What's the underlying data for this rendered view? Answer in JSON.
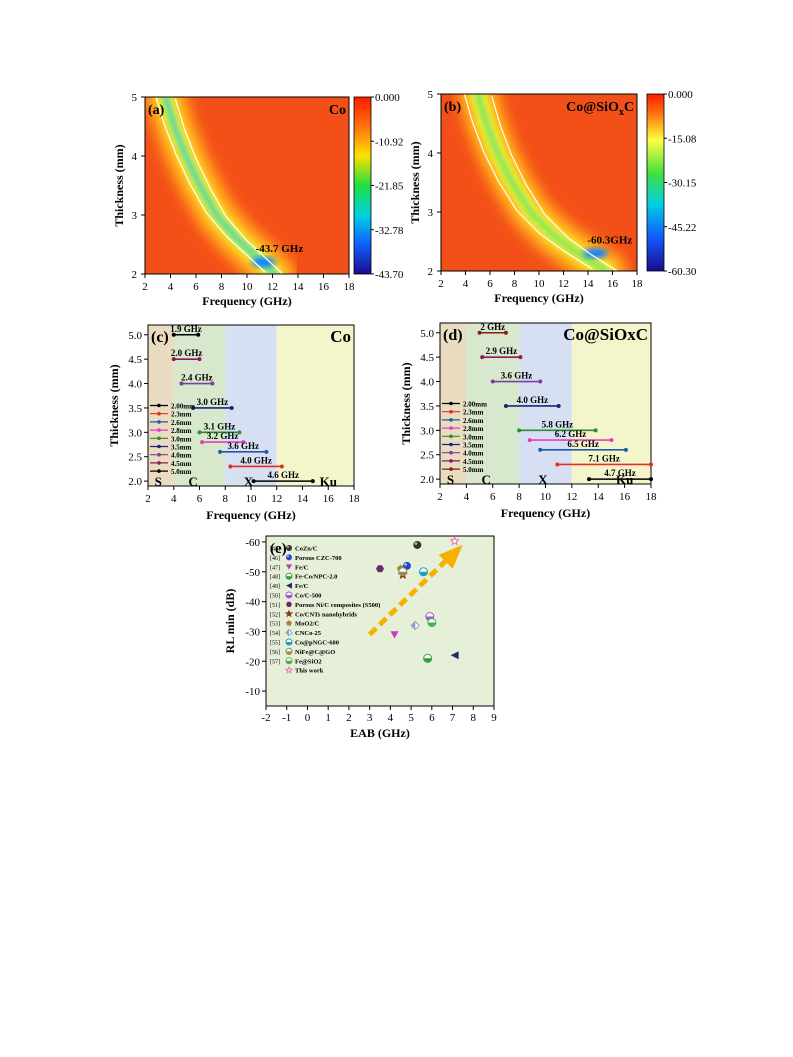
{
  "chart_data": [
    {
      "panel": "(a)",
      "type": "heatmap",
      "material": "Co",
      "xlabel": "Frequency (GHz)",
      "ylabel": "Thickness (mm)",
      "xlim": [
        2,
        18
      ],
      "ylim": [
        2,
        5
      ],
      "xticks": [
        "2",
        "4",
        "6",
        "8",
        "10",
        "12",
        "14",
        "16",
        "18"
      ],
      "yticks": [
        "2",
        "3",
        "4",
        "5"
      ],
      "colorbar_ticks": [
        "0.000",
        "-10.92",
        "-21.85",
        "-32.78",
        "-43.70"
      ],
      "colorbar_range": [
        -43.7,
        0
      ],
      "annotation": "-43.7 GHz",
      "min_point": {
        "x": 11.3,
        "y": 2.2
      },
      "ridge": [
        [
          3.6,
          5.0
        ],
        [
          4.3,
          4.5
        ],
        [
          5.2,
          4.0
        ],
        [
          6.3,
          3.5
        ],
        [
          7.6,
          3.0
        ],
        [
          9.2,
          2.6
        ],
        [
          10.7,
          2.3
        ],
        [
          12.2,
          2.0
        ]
      ]
    },
    {
      "panel": "(b)",
      "type": "heatmap",
      "material": "Co@SiO",
      "material_sub": "x",
      "material_end": "C",
      "xlabel": "Frequency (GHz)",
      "ylabel": "Thickness (mm)",
      "xlim": [
        2,
        18
      ],
      "ylim": [
        2,
        5
      ],
      "xticks": [
        "2",
        "4",
        "6",
        "8",
        "10",
        "12",
        "14",
        "16",
        "18"
      ],
      "yticks": [
        "2",
        "3",
        "4",
        "5"
      ],
      "colorbar_ticks": [
        "0.000",
        "-15.08",
        "-30.15",
        "-45.22",
        "-60.30"
      ],
      "colorbar_range": [
        -60.3,
        0
      ],
      "annotation": "-60.3GHz",
      "min_point": {
        "x": 14.6,
        "y": 2.3
      },
      "ridge": [
        [
          5.0,
          5.0
        ],
        [
          5.7,
          4.5
        ],
        [
          6.6,
          4.0
        ],
        [
          7.8,
          3.5
        ],
        [
          9.3,
          3.0
        ],
        [
          11.2,
          2.6
        ],
        [
          13.2,
          2.3
        ],
        [
          15.5,
          2.0
        ]
      ]
    },
    {
      "panel": "(c)",
      "type": "range",
      "material": "Co",
      "xlabel": "Frequency (GHz)",
      "ylabel": "Thickness (mm)",
      "xlim": [
        2,
        18
      ],
      "ylim": [
        1.9,
        5.2
      ],
      "xticks": [
        "2",
        "4",
        "6",
        "8",
        "10",
        "12",
        "14",
        "16",
        "18"
      ],
      "yticks": [
        "2.0",
        "2.5",
        "3.0",
        "3.5",
        "4.0",
        "4.5",
        "5.0"
      ],
      "bands": [
        {
          "name": "S",
          "from": 2,
          "to": 4,
          "color": "#eadcc0"
        },
        {
          "name": "C",
          "from": 4,
          "to": 8,
          "color": "#d7e8cc"
        },
        {
          "name": "X",
          "from": 8,
          "to": 12,
          "color": "#d6e0f2"
        },
        {
          "name": "Ku",
          "from": 12,
          "to": 18,
          "color": "#f5f5cc"
        }
      ],
      "legend": [
        "2.00mm",
        "2.3mm",
        "2.6mm",
        "2.8mm",
        "3.0mm",
        "3.5mm",
        "4.0mm",
        "4.5mm",
        "5.0mm"
      ],
      "bars": [
        {
          "thickness": 5.0,
          "from": 4.0,
          "to": 5.9,
          "label": "1.9 GHz",
          "color": "#000000"
        },
        {
          "thickness": 4.5,
          "from": 4.0,
          "to": 6.0,
          "label": "2.0 GHz",
          "color": "#8b1a5a"
        },
        {
          "thickness": 4.0,
          "from": 4.6,
          "to": 7.0,
          "label": "2.4 GHz",
          "color": "#7b3fa0"
        },
        {
          "thickness": 3.5,
          "from": 5.5,
          "to": 8.5,
          "label": "3.0 GHz",
          "color": "#1a237e"
        },
        {
          "thickness": 3.0,
          "from": 6.0,
          "to": 9.1,
          "label": "3.1 GHz",
          "color": "#2e8b2e"
        },
        {
          "thickness": 2.8,
          "from": 6.2,
          "to": 9.4,
          "label": "3.2 GHz",
          "color": "#e040c0"
        },
        {
          "thickness": 2.6,
          "from": 7.6,
          "to": 11.2,
          "label": "3.6 GHz",
          "color": "#1e5aa8"
        },
        {
          "thickness": 2.3,
          "from": 8.4,
          "to": 12.4,
          "label": "4.0 GHz",
          "color": "#e0301e"
        },
        {
          "thickness": 2.0,
          "from": 10.2,
          "to": 14.8,
          "label": "4.6 GHz",
          "color": "#000000"
        }
      ]
    },
    {
      "panel": "(d)",
      "type": "range",
      "material": "Co@SiOxC",
      "xlabel": "Frequency (GHz)",
      "ylabel": "Thickness (mm)",
      "xlim": [
        2,
        18
      ],
      "ylim": [
        1.9,
        5.2
      ],
      "xticks": [
        "2",
        "4",
        "6",
        "8",
        "10",
        "12",
        "14",
        "16",
        "18"
      ],
      "yticks": [
        "2.0",
        "2.5",
        "3.0",
        "3.5",
        "4.0",
        "4.5",
        "5.0"
      ],
      "bands": [
        {
          "name": "S",
          "from": 2,
          "to": 4,
          "color": "#eadcc0"
        },
        {
          "name": "C",
          "from": 4,
          "to": 8,
          "color": "#d7e8cc"
        },
        {
          "name": "X",
          "from": 8,
          "to": 12,
          "color": "#d6e0f2"
        },
        {
          "name": "Ku",
          "from": 12,
          "to": 18,
          "color": "#f5f5cc"
        }
      ],
      "legend": [
        "2.00mm",
        "2.3mm",
        "2.6mm",
        "2.8mm",
        "3.0mm",
        "3.5mm",
        "4.0mm",
        "4.5mm",
        "5.0mm"
      ],
      "bars": [
        {
          "thickness": 5.0,
          "from": 5.0,
          "to": 7.0,
          "label": "2 GHz",
          "color": "#8b1a1a"
        },
        {
          "thickness": 4.5,
          "from": 5.2,
          "to": 8.1,
          "label": "2.9 GHz",
          "color": "#8b1a5a"
        },
        {
          "thickness": 4.0,
          "from": 6.0,
          "to": 9.6,
          "label": "3.6 GHz",
          "color": "#7b3fa0"
        },
        {
          "thickness": 3.5,
          "from": 7.0,
          "to": 11.0,
          "label": "4.0 GHz",
          "color": "#1a237e"
        },
        {
          "thickness": 3.0,
          "from": 8.0,
          "to": 13.8,
          "label": "5.8 GHz",
          "color": "#2e8b2e"
        },
        {
          "thickness": 2.8,
          "from": 8.8,
          "to": 15.0,
          "label": "6.2 GHz",
          "color": "#e040c0"
        },
        {
          "thickness": 2.6,
          "from": 9.6,
          "to": 16.1,
          "label": "6.5 GHz",
          "color": "#1e5aa8"
        },
        {
          "thickness": 2.3,
          "from": 10.9,
          "to": 18.0,
          "label": "7.1 GHz",
          "color": "#e0301e"
        },
        {
          "thickness": 2.0,
          "from": 13.3,
          "to": 18.0,
          "label": "4.7 GHz",
          "color": "#000000"
        }
      ]
    },
    {
      "panel": "(e)",
      "type": "scatter",
      "xlabel": "EAB (GHz)",
      "ylabel": "RL min (dB)",
      "xlim": [
        -2,
        9
      ],
      "ylim": [
        -5,
        -62
      ],
      "xticks": [
        "-2",
        "-1",
        "0",
        "1",
        "2",
        "3",
        "4",
        "5",
        "6",
        "7",
        "8",
        "9"
      ],
      "yticks": [
        "-60",
        "-50",
        "-40",
        "-30",
        "-20",
        "-10"
      ],
      "points": [
        {
          "ref": "[45]",
          "name": "CoZn/C",
          "x": 5.3,
          "y": -59,
          "shape": "circle",
          "color": "#333333"
        },
        {
          "ref": "[46]",
          "name": "Porous CZC-700",
          "x": 4.8,
          "y": -52,
          "shape": "circle",
          "color": "#2747c9"
        },
        {
          "ref": "[47]",
          "name": "Fe/C",
          "x": 4.2,
          "y": -29,
          "shape": "tri-down",
          "color": "#c23bc0"
        },
        {
          "ref": "[48]",
          "name": "Fe-Co/NPC-2.0",
          "x": 5.8,
          "y": -21,
          "shape": "half",
          "color": "#2f9e3c"
        },
        {
          "ref": "[49]",
          "name": "Fe/C",
          "x": 7.1,
          "y": -22,
          "shape": "tri-left",
          "color": "#1f2b6e"
        },
        {
          "ref": "[50]",
          "name": "Co/C-500",
          "x": 5.9,
          "y": -35,
          "shape": "half",
          "color": "#9b5bd1"
        },
        {
          "ref": "[51]",
          "name": "Porous Ni/C composites (S500)",
          "x": 3.5,
          "y": -51,
          "shape": "hex",
          "color": "#6b2a6b"
        },
        {
          "ref": "[52]",
          "name": "Co/CNTs nanohybrids",
          "x": 4.6,
          "y": -49,
          "shape": "star",
          "color": "#8b3a1a"
        },
        {
          "ref": "[53]",
          "name": "MoO2/C",
          "x": 4.5,
          "y": -51,
          "shape": "pent",
          "color": "#a08a2a"
        },
        {
          "ref": "[54]",
          "name": "CNCo-25",
          "x": 5.2,
          "y": -32,
          "shape": "diamond",
          "color": "#8aa0c8"
        },
        {
          "ref": "[55]",
          "name": "Co@pNGC-600",
          "x": 5.6,
          "y": -50,
          "shape": "half",
          "color": "#1aa0b8"
        },
        {
          "ref": "[56]",
          "name": "NiFe@C@GO",
          "x": 4.6,
          "y": -50,
          "shape": "half",
          "color": "#9a8a5a"
        },
        {
          "ref": "[57]",
          "name": "Fe@SiO2",
          "x": 6.0,
          "y": -33,
          "shape": "half",
          "color": "#4ab04a"
        },
        {
          "ref": "",
          "name": "This work",
          "x": 7.1,
          "y": -60.3,
          "shape": "star",
          "color": "#e07aa8"
        }
      ],
      "legend_sub": {
        "MoO2/C": "2",
        "Fe@SiO2": "2"
      },
      "arrow": {
        "from": [
          3.0,
          -29
        ],
        "to": [
          7.2,
          -57
        ]
      }
    }
  ]
}
